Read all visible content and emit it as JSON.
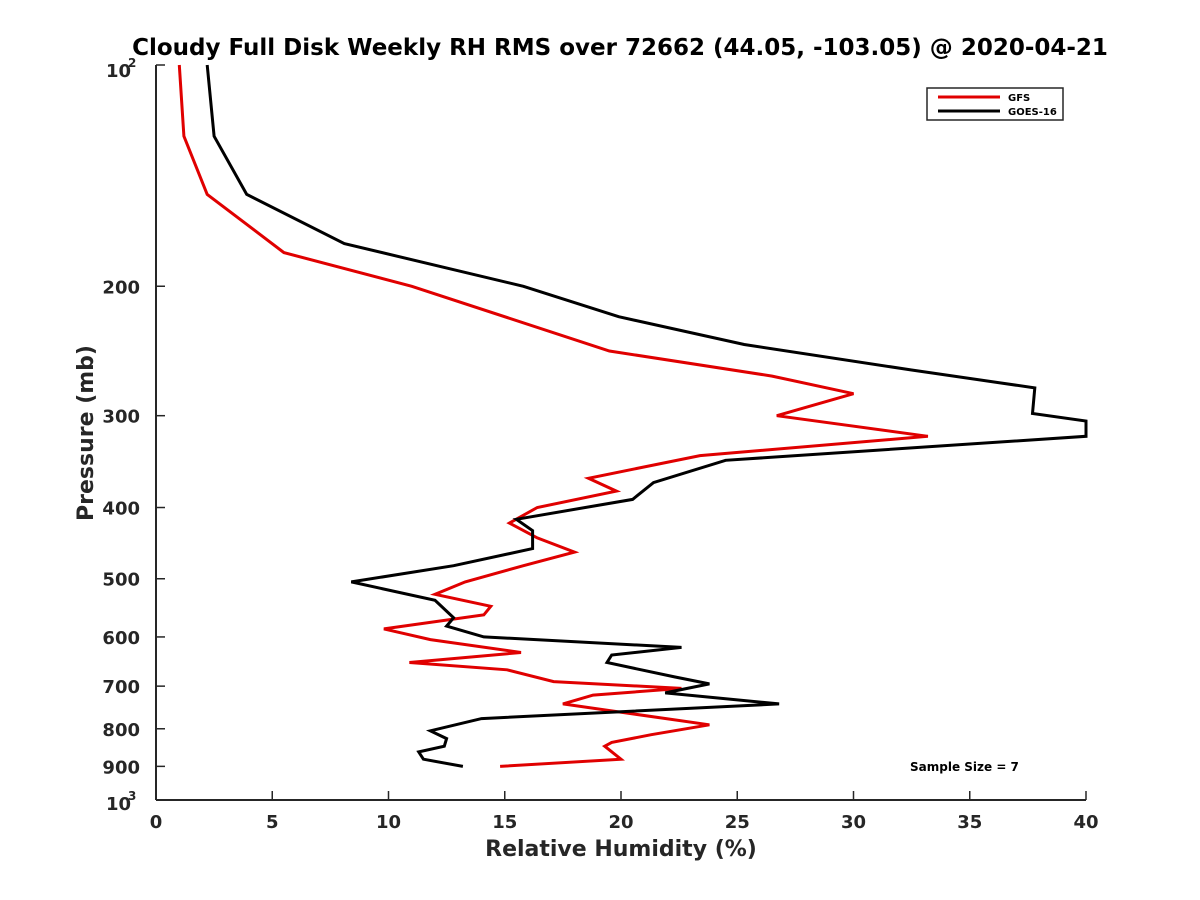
{
  "chart_data": {
    "type": "line",
    "title": "Cloudy Full Disk Weekly RH RMS over 72662 (44.05, -103.05) @ 2020-04-21",
    "xlabel": "Relative Humidity (%)",
    "ylabel": "Pressure (mb)",
    "xlim": [
      0,
      40
    ],
    "ylim": [
      100,
      1000
    ],
    "y_scale": "log",
    "y_reversed": true,
    "grid": false,
    "legend_position": "top-right",
    "x_ticks": [
      "0",
      "5",
      "10",
      "15",
      "20",
      "25",
      "30",
      "35",
      "40"
    ],
    "y_ticks": [
      {
        "value": 200,
        "label": "200"
      },
      {
        "value": 300,
        "label": "300"
      },
      {
        "value": 400,
        "label": "400"
      },
      {
        "value": 500,
        "label": "500"
      },
      {
        "value": 600,
        "label": "600"
      },
      {
        "value": 700,
        "label": "700"
      },
      {
        "value": 800,
        "label": "800"
      },
      {
        "value": 900,
        "label": "900"
      }
    ],
    "y_limit_labels": {
      "top_base": "10",
      "top_exp": "2",
      "bottom_base": "10",
      "bottom_exp": "3"
    },
    "annotation": "Sample Size = 7",
    "series": [
      {
        "name": "GFS",
        "color": "#e00000",
        "points": [
          [
            1.0,
            100
          ],
          [
            1.2,
            125
          ],
          [
            2.2,
            150
          ],
          [
            5.5,
            180
          ],
          [
            11.0,
            200
          ],
          [
            19.5,
            245
          ],
          [
            26.5,
            265
          ],
          [
            30.0,
            280
          ],
          [
            26.7,
            300
          ],
          [
            33.2,
            320
          ],
          [
            23.4,
            340
          ],
          [
            18.6,
            365
          ],
          [
            19.8,
            380
          ],
          [
            16.4,
            400
          ],
          [
            15.2,
            420
          ],
          [
            16.4,
            440
          ],
          [
            18.0,
            460
          ],
          [
            15.8,
            480
          ],
          [
            13.3,
            505
          ],
          [
            12.0,
            525
          ],
          [
            14.4,
            545
          ],
          [
            14.1,
            560
          ],
          [
            9.8,
            585
          ],
          [
            11.8,
            605
          ],
          [
            15.7,
            630
          ],
          [
            10.9,
            650
          ],
          [
            15.1,
            665
          ],
          [
            17.1,
            690
          ],
          [
            22.6,
            705
          ],
          [
            18.8,
            720
          ],
          [
            17.5,
            740
          ],
          [
            23.8,
            790
          ],
          [
            21.3,
            815
          ],
          [
            19.6,
            835
          ],
          [
            19.3,
            845
          ],
          [
            20.0,
            880
          ],
          [
            14.8,
            900
          ]
        ]
      },
      {
        "name": "GOES-16",
        "color": "#000000",
        "points": [
          [
            2.2,
            100
          ],
          [
            2.5,
            125
          ],
          [
            3.9,
            150
          ],
          [
            8.1,
            175
          ],
          [
            15.8,
            200
          ],
          [
            19.9,
            220
          ],
          [
            25.3,
            240
          ],
          [
            32.5,
            260
          ],
          [
            37.8,
            275
          ],
          [
            37.7,
            298
          ],
          [
            40.0,
            305
          ],
          [
            40.0,
            320
          ],
          [
            24.5,
            345
          ],
          [
            21.4,
            370
          ],
          [
            20.5,
            390
          ],
          [
            15.5,
            415
          ],
          [
            16.2,
            430
          ],
          [
            16.2,
            455
          ],
          [
            12.8,
            480
          ],
          [
            8.4,
            505
          ],
          [
            12.0,
            535
          ],
          [
            12.8,
            565
          ],
          [
            12.5,
            580
          ],
          [
            14.1,
            600
          ],
          [
            22.6,
            620
          ],
          [
            19.6,
            635
          ],
          [
            19.4,
            650
          ],
          [
            22.3,
            680
          ],
          [
            23.8,
            695
          ],
          [
            21.9,
            715
          ],
          [
            26.8,
            740
          ],
          [
            14.0,
            775
          ],
          [
            11.8,
            805
          ],
          [
            12.5,
            825
          ],
          [
            12.4,
            845
          ],
          [
            11.3,
            860
          ],
          [
            11.5,
            880
          ],
          [
            13.2,
            900
          ]
        ]
      }
    ]
  }
}
